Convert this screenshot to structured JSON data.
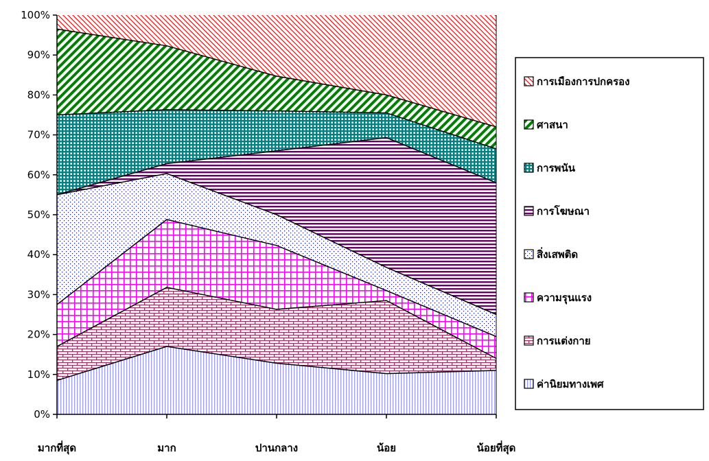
{
  "chart_data": {
    "type": "area",
    "stacked": "percent",
    "categories": [
      "มากที่สุด",
      "มาก",
      "ปานกลาง",
      "น้อย",
      "น้อยที่สุด"
    ],
    "ylim": [
      0,
      100
    ],
    "yticks": [
      "0%",
      "10%",
      "20%",
      "30%",
      "40%",
      "50%",
      "60%",
      "70%",
      "80%",
      "90%",
      "100%"
    ],
    "grid": false,
    "legend_position": "right",
    "series": [
      {
        "name": "ค่านิยมทางเพศ",
        "values": [
          8.5,
          17,
          12.8,
          10.2,
          11
        ]
      },
      {
        "name": "การแต่งกาย",
        "values": [
          8.5,
          14.8,
          13.5,
          18.3,
          3
        ]
      },
      {
        "name": "ความรุนแรง",
        "values": [
          10.5,
          17,
          16,
          2.5,
          5.5
        ]
      },
      {
        "name": "สิ่งเสพติด",
        "values": [
          27.5,
          11.5,
          7.7,
          5.8,
          5.5
        ]
      },
      {
        "name": "การโฆษณา",
        "values": [
          0,
          2.5,
          16,
          32.5,
          33
        ]
      },
      {
        "name": "การพนัน",
        "values": [
          20,
          13.5,
          10,
          6.2,
          8.5
        ]
      },
      {
        "name": "ศาสนา",
        "values": [
          21.5,
          16,
          8.7,
          4.5,
          5.5
        ]
      },
      {
        "name": "การเมืองการปกครอง",
        "values": [
          3.5,
          7.7,
          15.3,
          20,
          28
        ]
      }
    ],
    "colors": {
      "ค่านิยมทางเพศ": "#9999ff",
      "การแต่งกาย": "#993366",
      "ความรุนแรง": "#ff00ff",
      "สิ่งเสพติด": "#0000ff",
      "การโฆษณา": "#660066",
      "การพนัน": "#008080",
      "ศาสนา": "#008000",
      "การเมืองการปกครอง": "#ff0000"
    }
  }
}
